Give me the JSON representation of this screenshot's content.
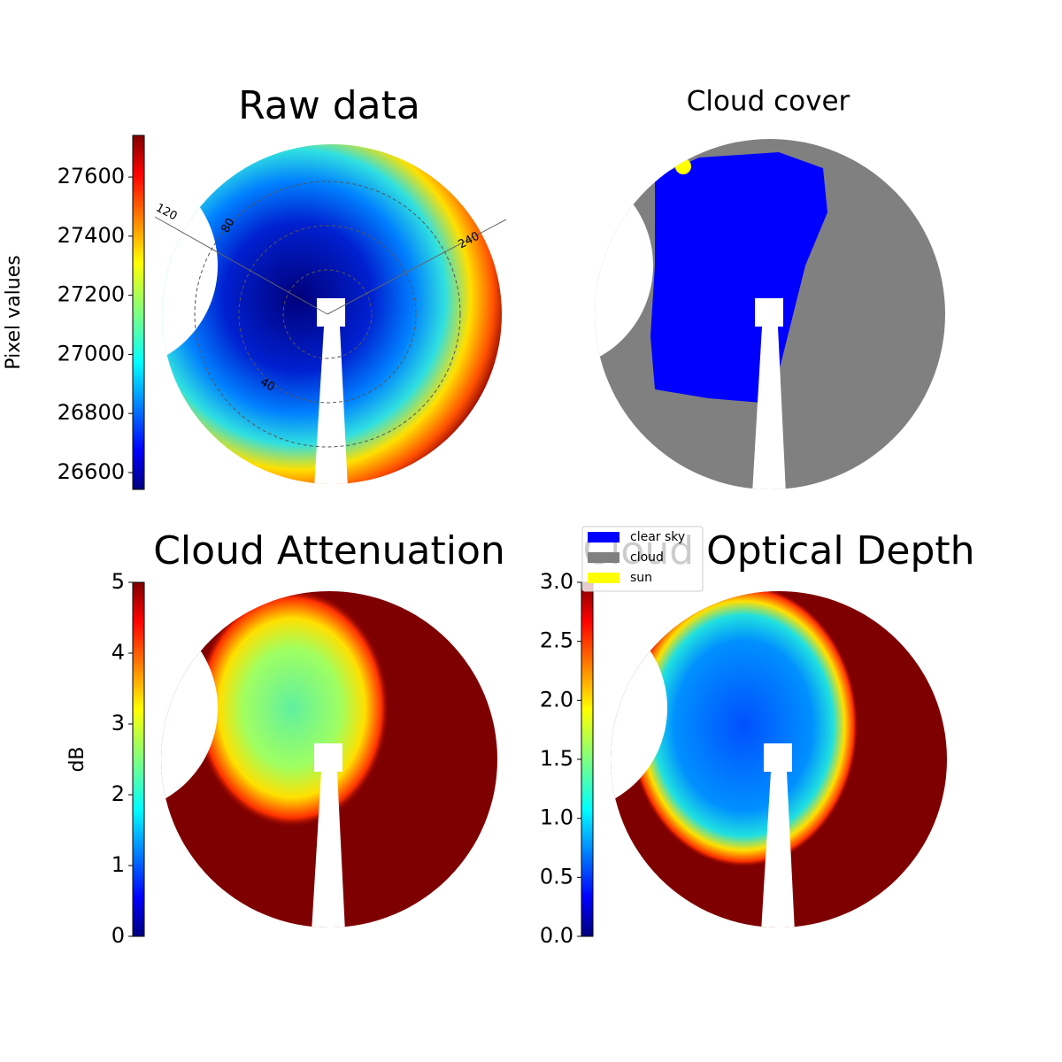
{
  "chart_data": [
    {
      "type": "image",
      "title": "Raw data",
      "colorbar": {
        "label": "Pixel values",
        "lim": [
          26543,
          27741
        ],
        "ticks": [
          26600,
          26800,
          27000,
          27200,
          27400,
          27600
        ]
      },
      "annotations": [
        "120",
        "80",
        "240",
        "40"
      ]
    },
    {
      "type": "image",
      "title": "Cloud cover",
      "series": [
        {
          "name": "clear sky",
          "color": "#0000ff"
        },
        {
          "name": "cloud",
          "color": "#808080"
        },
        {
          "name": "sun",
          "color": "#ffff00"
        }
      ]
    },
    {
      "type": "image",
      "title": "Cloud Attenuation",
      "colorbar": {
        "label": "dB",
        "lim": [
          0,
          5
        ],
        "ticks": [
          0,
          1,
          2,
          3,
          4,
          5
        ]
      }
    },
    {
      "type": "image",
      "title": "Cloud Optical Depth",
      "colorbar": {
        "lim": [
          0,
          3
        ],
        "ticks": [
          {
            "value": 0,
            "label": "0.0"
          },
          0.5,
          {
            "value": 1,
            "label": "1.0"
          },
          1.5,
          {
            "value": 2,
            "label": "2.0"
          },
          2.5,
          {
            "value": 3,
            "label": "3.0"
          }
        ]
      }
    }
  ]
}
